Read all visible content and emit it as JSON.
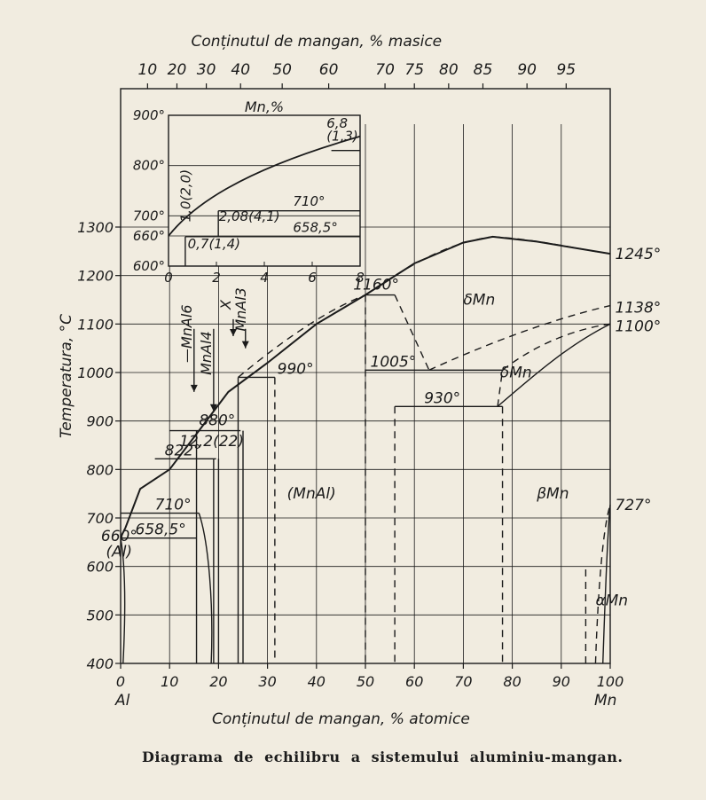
{
  "title_top": "Conținutul de mangan, % masice",
  "title_bottom": "Conținutul de mangan, % atomice",
  "ylabel": "Temperatura, °C",
  "caption": "Diagrama de echilibru a sistemului aluminiu-mangan.",
  "x_end_left": "Al",
  "x_end_right": "Mn",
  "chart_data": {
    "type": "line",
    "xlabel": "Conținutul de mangan, % atomice",
    "ylabel": "Temperatura, °C",
    "xlim": [
      0,
      100
    ],
    "ylim": [
      400,
      1400
    ],
    "grid": true,
    "x_ticks": [
      "0",
      "10",
      "20",
      "30",
      "40",
      "50",
      "60",
      "70",
      "80",
      "90",
      "100"
    ],
    "y_ticks": [
      "400",
      "500",
      "600",
      "700",
      "800",
      "900",
      "1000",
      "1100",
      "1200",
      "1300"
    ],
    "top_axis_ticks": [
      {
        "label": "10",
        "at": 5.5
      },
      {
        "label": "20",
        "at": 11.5
      },
      {
        "label": "30",
        "at": 17.5
      },
      {
        "label": "40",
        "at": 24.5
      },
      {
        "label": "50",
        "at": 33
      },
      {
        "label": "60",
        "at": 42.5
      },
      {
        "label": "70",
        "at": 54
      },
      {
        "label": "75",
        "at": 60
      },
      {
        "label": "80",
        "at": 67
      },
      {
        "label": "85",
        "at": 74
      },
      {
        "label": "90",
        "at": 83
      },
      {
        "label": "95",
        "at": 91
      }
    ],
    "liquidus": [
      [
        0,
        660
      ],
      [
        1,
        680
      ],
      [
        4,
        760
      ],
      [
        10,
        800
      ],
      [
        16,
        880
      ],
      [
        22,
        960
      ],
      [
        30,
        1020
      ],
      [
        40,
        1100
      ],
      [
        50,
        1160
      ],
      [
        60,
        1225
      ],
      [
        70,
        1268
      ],
      [
        76,
        1280
      ],
      [
        85,
        1270
      ],
      [
        100,
        1245
      ]
    ],
    "annotations": [
      {
        "text": "1245°",
        "x": 101,
        "y": 1245
      },
      {
        "text": "1160°",
        "x": 47,
        "y": 1170
      },
      {
        "text": "δMn",
        "x": 72,
        "y": 1145
      },
      {
        "text": "1138°",
        "x": 101,
        "y": 1138
      },
      {
        "text": "1100°",
        "x": 101,
        "y": 1095
      },
      {
        "text": "1005°",
        "x": 51,
        "y": 1015
      },
      {
        "text": "990°",
        "x": 31.5,
        "y": 1000
      },
      {
        "text": "δMn",
        "x": 77,
        "y": 995
      },
      {
        "text": "930°",
        "x": 63,
        "y": 935
      },
      {
        "text": "880°",
        "x": 16,
        "y": 890
      },
      {
        "text": "12,2(22)",
        "x": 12,
        "y": 853
      },
      {
        "text": "822°",
        "x": 9,
        "y": 812
      },
      {
        "text": "(MnAl)",
        "x": 35,
        "y": 735
      },
      {
        "text": "βMn",
        "x": 85,
        "y": 740
      },
      {
        "text": "710°",
        "x": 6.5,
        "y": 720
      },
      {
        "text": "727°",
        "x": 101,
        "y": 730
      },
      {
        "text": "660°",
        "x": -4,
        "y": 668
      },
      {
        "text": "658,5°",
        "x": 3.5,
        "y": 662
      },
      {
        "text": "(Al)",
        "x": -3,
        "y": 630
      },
      {
        "text": "αMn",
        "x": 98,
        "y": 530
      },
      {
        "text": "—MnAl6",
        "x": 17,
        "y": 1110
      },
      {
        "text": "MnAl4",
        "x": 21,
        "y": 1110
      },
      {
        "text": "X",
        "x": 24,
        "y": 1140
      },
      {
        "text": "MnAl3",
        "x": 27,
        "y": 1110
      }
    ],
    "inset": {
      "title": "Mn,%",
      "xlim": [
        0,
        8
      ],
      "ylim": [
        600,
        900
      ],
      "x_ticks": [
        "0",
        "2",
        "4",
        "6",
        "8"
      ],
      "y_ticks": [
        "600°",
        "660°",
        "700°",
        "800°",
        "900°"
      ],
      "annotations": [
        "6,8 (1,3)",
        "1,0(2,0)",
        "710°",
        "2,08(4,1)",
        "658,5°",
        "0,7(1,4)"
      ]
    }
  }
}
